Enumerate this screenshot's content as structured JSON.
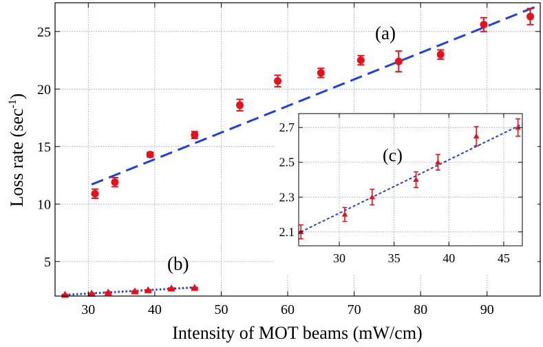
{
  "chart_data": {
    "type": "scatter",
    "main": {
      "xlabel": "Intensity of MOT beams (mW/cm)",
      "ylabel_main": "Loss rate (sec",
      "ylabel_sup": "-1",
      "ylabel_tail": ")",
      "xlim": [
        25,
        98
      ],
      "ylim": [
        2,
        27.5
      ],
      "xticks": [
        30,
        40,
        50,
        60,
        70,
        80,
        90
      ],
      "yticks": [
        5,
        10,
        15,
        20,
        25
      ],
      "grid": true,
      "series": [
        {
          "label": "(a)",
          "marker": "circle",
          "color": "#e8101a",
          "x": [
            31,
            34,
            39.3,
            46,
            52.8,
            58.5,
            65,
            71,
            76.7,
            83,
            89.5,
            96.5
          ],
          "y": [
            10.9,
            11.9,
            14.3,
            16.0,
            18.6,
            20.7,
            21.4,
            22.5,
            22.4,
            23.0,
            25.6,
            26.3
          ],
          "err": [
            0.4,
            0.4,
            0.2,
            0.3,
            0.5,
            0.5,
            0.4,
            0.4,
            0.9,
            0.4,
            0.6,
            0.7
          ],
          "fit": {
            "style": "dashed",
            "color": "#1f3fe0",
            "x": [
              30.5,
              97.5
            ],
            "y": [
              11.7,
              27.2
            ]
          }
        },
        {
          "label": "(b)",
          "marker": "triangle",
          "color": "#e8101a",
          "x": [
            26.5,
            30.5,
            33,
            37,
            39,
            42.5,
            46
          ],
          "y": [
            2.1,
            2.2,
            2.3,
            2.4,
            2.5,
            2.65,
            2.7
          ],
          "err": [
            0.04,
            0.04,
            0.04,
            0.04,
            0.04,
            0.05,
            0.05
          ],
          "fit": {
            "style": "dotted",
            "color": "#1f3fe0",
            "x": [
              26.5,
              46
            ],
            "y": [
              2.1,
              2.75
            ]
          }
        }
      ]
    },
    "inset": {
      "label": "(c)",
      "xlim": [
        26.3,
        46.7
      ],
      "ylim": [
        2.02,
        2.78
      ],
      "xticks": [
        30,
        35,
        40,
        45
      ],
      "yticks": [
        2.1,
        2.3,
        2.5,
        2.7
      ],
      "grid": true,
      "marker": "triangle",
      "color": "#e8101a",
      "x": [
        26.5,
        30.5,
        33,
        37,
        39,
        42.5,
        46.3
      ],
      "y": [
        2.1,
        2.2,
        2.3,
        2.4,
        2.5,
        2.65,
        2.7
      ],
      "err": [
        0.04,
        0.04,
        0.045,
        0.045,
        0.045,
        0.055,
        0.05
      ],
      "fit": {
        "style": "dashed",
        "color": "#1f3fe0",
        "x": [
          26.5,
          46.7
        ],
        "y": [
          2.1,
          2.72
        ]
      }
    }
  }
}
